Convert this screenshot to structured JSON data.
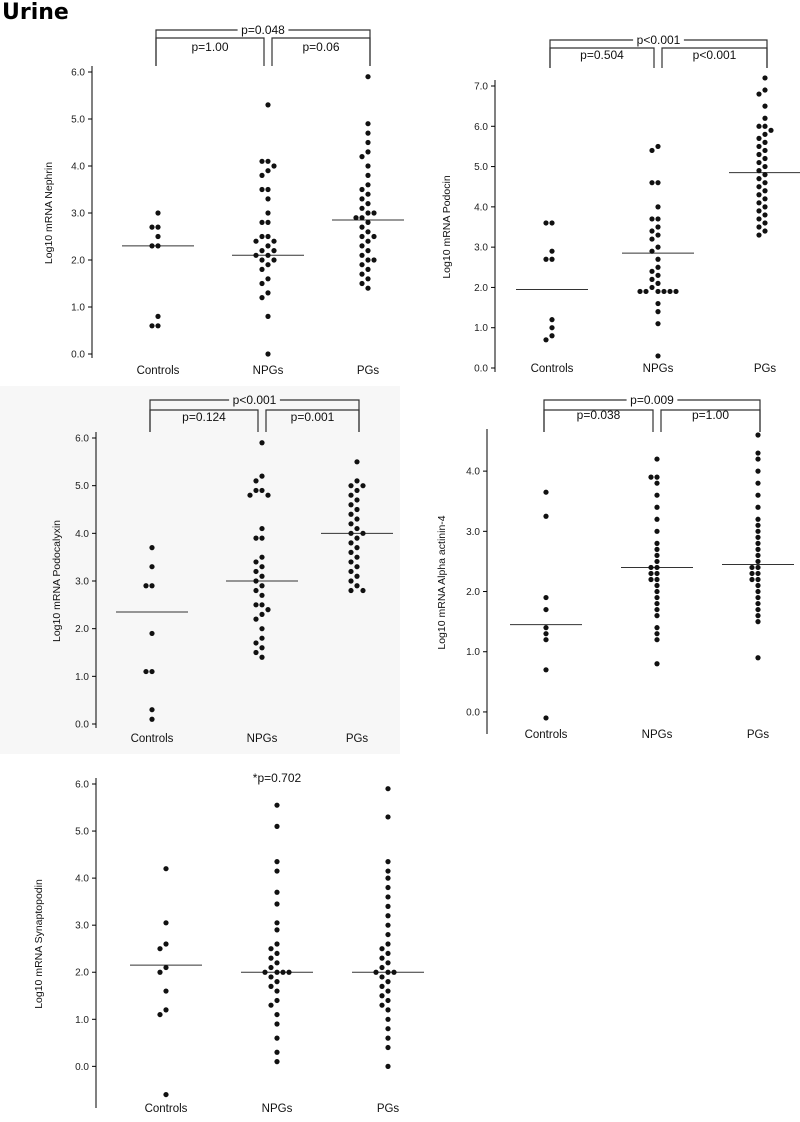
{
  "page_title": "Urine",
  "chart_data": [
    {
      "type": "scatter",
      "ylabel": "Log10 mRNA Nephrin",
      "categories": [
        "Controls",
        "NPGs",
        "PGs"
      ],
      "yticks": [
        "0.0",
        "1.0",
        "2.0",
        "3.0",
        "4.0",
        "5.0",
        "6.0"
      ],
      "ylim": [
        0,
        6
      ],
      "comparisons": [
        {
          "from": 0,
          "to": 1,
          "label": "p=1.00"
        },
        {
          "from": 1,
          "to": 2,
          "label": "p=0.06"
        },
        {
          "from": 0,
          "to": 2,
          "label": "p=0.048"
        }
      ],
      "series": [
        {
          "category": "Controls",
          "median": 2.3,
          "values": [
            3.0,
            2.7,
            2.7,
            2.5,
            2.3,
            2.3,
            0.8,
            0.6,
            0.6
          ]
        },
        {
          "category": "NPGs",
          "median": 2.1,
          "values": [
            5.3,
            4.1,
            4.1,
            4.0,
            3.9,
            3.8,
            3.5,
            3.5,
            3.3,
            3.0,
            2.8,
            2.8,
            2.5,
            2.5,
            2.4,
            2.4,
            2.3,
            2.2,
            2.2,
            2.1,
            2.1,
            2.0,
            2.0,
            1.9,
            1.8,
            1.6,
            1.5,
            1.3,
            1.2,
            0.8,
            0.0
          ]
        },
        {
          "category": "PGs",
          "median": 2.85,
          "values": [
            5.9,
            4.9,
            4.7,
            4.5,
            4.3,
            4.2,
            4.0,
            3.8,
            3.6,
            3.5,
            3.4,
            3.3,
            3.2,
            3.1,
            3.0,
            3.0,
            2.9,
            2.9,
            2.8,
            2.7,
            2.6,
            2.5,
            2.5,
            2.4,
            2.3,
            2.2,
            2.1,
            2.0,
            2.0,
            1.9,
            1.8,
            1.7,
            1.6,
            1.5,
            1.4
          ]
        }
      ]
    },
    {
      "type": "scatter",
      "ylabel": "Log10 mRNA Podocin",
      "categories": [
        "Controls",
        "NPGs",
        "PGs"
      ],
      "yticks": [
        "0.0",
        "1.0",
        "2.0",
        "3.0",
        "4.0",
        "5.0",
        "6.0",
        "7.0"
      ],
      "ylim": [
        0,
        7
      ],
      "comparisons": [
        {
          "from": 0,
          "to": 1,
          "label": "p=0.504"
        },
        {
          "from": 1,
          "to": 2,
          "label": "p<0.001"
        },
        {
          "from": 0,
          "to": 2,
          "label": "p<0.001"
        }
      ],
      "series": [
        {
          "category": "Controls",
          "median": 1.95,
          "values": [
            3.6,
            3.6,
            2.9,
            2.7,
            2.7,
            1.2,
            1.0,
            0.8,
            0.7
          ]
        },
        {
          "category": "NPGs",
          "median": 2.85,
          "values": [
            5.5,
            5.4,
            4.6,
            4.6,
            4.0,
            3.7,
            3.7,
            3.5,
            3.4,
            3.3,
            3.2,
            3.0,
            2.9,
            2.7,
            2.5,
            2.4,
            2.3,
            2.2,
            2.1,
            2.0,
            1.9,
            1.9,
            1.9,
            1.9,
            1.9,
            1.9,
            1.6,
            1.4,
            1.1,
            0.3
          ]
        },
        {
          "category": "PGs",
          "median": 4.85,
          "values": [
            7.2,
            6.9,
            6.8,
            6.5,
            6.2,
            6.0,
            6.0,
            5.9,
            5.8,
            5.7,
            5.6,
            5.5,
            5.4,
            5.3,
            5.2,
            5.1,
            5.0,
            4.9,
            4.8,
            4.7,
            4.6,
            4.5,
            4.4,
            4.3,
            4.2,
            4.1,
            4.0,
            3.9,
            3.8,
            3.7,
            3.6,
            3.5,
            3.4,
            3.3
          ]
        }
      ]
    },
    {
      "type": "scatter",
      "ylabel": "Log10 mRNA Podocalyxin",
      "categories": [
        "Controls",
        "NPGs",
        "PGs"
      ],
      "yticks": [
        "0.0",
        "1.0",
        "2.0",
        "3.0",
        "4.0",
        "5.0",
        "6.0"
      ],
      "ylim": [
        0,
        6
      ],
      "comparisons": [
        {
          "from": 0,
          "to": 1,
          "label": "p=0.124"
        },
        {
          "from": 1,
          "to": 2,
          "label": "p=0.001"
        },
        {
          "from": 0,
          "to": 2,
          "label": "p<0.001"
        }
      ],
      "series": [
        {
          "category": "Controls",
          "median": 2.35,
          "values": [
            3.7,
            3.3,
            2.9,
            2.9,
            1.9,
            1.1,
            1.1,
            0.3,
            0.1
          ]
        },
        {
          "category": "NPGs",
          "median": 3.0,
          "values": [
            5.9,
            5.2,
            5.1,
            4.9,
            4.9,
            4.8,
            4.8,
            4.1,
            3.9,
            3.9,
            3.5,
            3.4,
            3.3,
            3.2,
            3.1,
            3.0,
            2.9,
            2.8,
            2.7,
            2.5,
            2.5,
            2.4,
            2.3,
            2.2,
            2.0,
            1.8,
            1.7,
            1.6,
            1.5,
            1.4
          ]
        },
        {
          "category": "PGs",
          "median": 4.0,
          "values": [
            5.5,
            5.1,
            5.0,
            5.0,
            4.9,
            4.8,
            4.7,
            4.6,
            4.5,
            4.4,
            4.3,
            4.2,
            4.1,
            4.0,
            4.0,
            3.9,
            3.8,
            3.7,
            3.6,
            3.5,
            3.4,
            3.3,
            3.2,
            3.1,
            3.0,
            2.9,
            2.8,
            2.8
          ]
        }
      ]
    },
    {
      "type": "scatter",
      "ylabel": "Log10 mRNA Alpha actinin-4",
      "categories": [
        "Controls",
        "NPGs",
        "PGs"
      ],
      "yticks": [
        "0.0",
        "1.0",
        "2.0",
        "3.0",
        "4.0"
      ],
      "ylim": [
        -0.3,
        4.6
      ],
      "comparisons": [
        {
          "from": 0,
          "to": 1,
          "label": "p=0.038"
        },
        {
          "from": 1,
          "to": 2,
          "label": "p=1.00"
        },
        {
          "from": 0,
          "to": 2,
          "label": "p=0.009"
        }
      ],
      "series": [
        {
          "category": "Controls",
          "median": 1.45,
          "values": [
            3.65,
            3.25,
            1.9,
            1.7,
            1.4,
            1.3,
            1.2,
            0.7,
            -0.1
          ]
        },
        {
          "category": "NPGs",
          "median": 2.4,
          "values": [
            4.2,
            3.9,
            3.9,
            3.8,
            3.6,
            3.4,
            3.2,
            3.0,
            2.8,
            2.7,
            2.6,
            2.5,
            2.4,
            2.4,
            2.3,
            2.3,
            2.2,
            2.2,
            2.1,
            2.0,
            1.9,
            1.8,
            1.7,
            1.6,
            1.4,
            1.3,
            1.2,
            0.8
          ]
        },
        {
          "category": "PGs",
          "median": 2.45,
          "values": [
            4.6,
            4.3,
            4.2,
            4.0,
            3.8,
            3.6,
            3.4,
            3.2,
            3.1,
            3.0,
            2.9,
            2.8,
            2.7,
            2.6,
            2.5,
            2.4,
            2.4,
            2.3,
            2.3,
            2.2,
            2.2,
            2.1,
            2.0,
            1.9,
            1.8,
            1.7,
            1.6,
            1.5,
            0.9
          ]
        }
      ]
    },
    {
      "type": "scatter",
      "ylabel": "Log10 mRNA Synaptopodin",
      "categories": [
        "Controls",
        "NPGs",
        "PGs"
      ],
      "yticks": [
        "0.0",
        "1.0",
        "2.0",
        "3.0",
        "4.0",
        "5.0",
        "6.0"
      ],
      "ylim": [
        -0.8,
        6.0
      ],
      "comparisons": [],
      "annotation": "*p=0.702",
      "series": [
        {
          "category": "Controls",
          "median": 2.15,
          "values": [
            4.2,
            3.05,
            2.6,
            2.5,
            2.1,
            2.0,
            1.6,
            1.2,
            1.1,
            -0.6
          ]
        },
        {
          "category": "NPGs",
          "median": 2.0,
          "values": [
            5.55,
            5.1,
            4.35,
            4.15,
            3.7,
            3.45,
            3.05,
            2.9,
            2.6,
            2.5,
            2.4,
            2.3,
            2.2,
            2.1,
            2.0,
            2.0,
            2.0,
            2.0,
            1.9,
            1.8,
            1.7,
            1.6,
            1.4,
            1.3,
            1.1,
            0.9,
            0.6,
            0.3,
            0.1
          ]
        },
        {
          "category": "PGs",
          "median": 2.0,
          "values": [
            5.9,
            5.3,
            4.35,
            4.15,
            4.0,
            3.8,
            3.6,
            3.4,
            3.2,
            3.0,
            2.8,
            2.6,
            2.5,
            2.4,
            2.3,
            2.2,
            2.1,
            2.0,
            2.0,
            2.0,
            1.9,
            1.8,
            1.7,
            1.6,
            1.5,
            1.4,
            1.3,
            1.2,
            1.0,
            0.8,
            0.6,
            0.4,
            0.0
          ]
        }
      ]
    }
  ]
}
